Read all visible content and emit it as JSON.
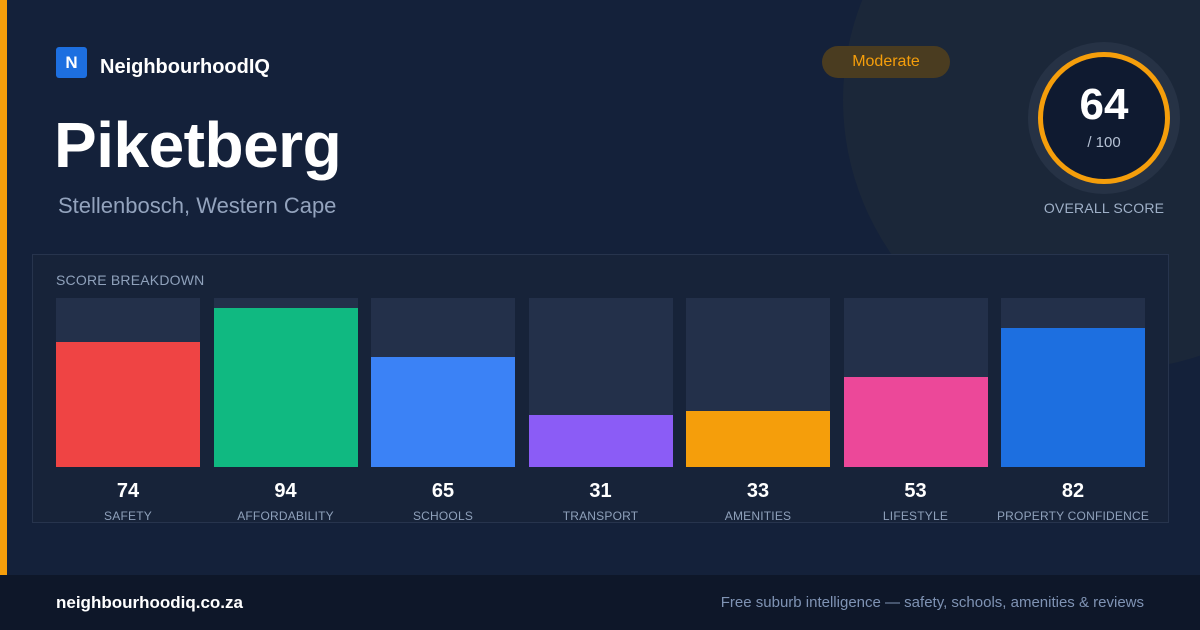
{
  "brand": {
    "logo_letter": "N",
    "name": "NeighbourhoodIQ"
  },
  "suburb": {
    "name": "Piketberg",
    "region": "Stellenbosch, Western Cape"
  },
  "rating_badge": "Moderate",
  "overall": {
    "score": "64",
    "max": "/ 100",
    "label": "OVERALL SCORE",
    "color": "#f59e0b"
  },
  "breakdown": {
    "title": "SCORE BREAKDOWN",
    "items": [
      {
        "label": "SAFETY",
        "value": "74",
        "color": "#ef4444"
      },
      {
        "label": "AFFORDABILITY",
        "value": "94",
        "color": "#10b981"
      },
      {
        "label": "SCHOOLS",
        "value": "65",
        "color": "#3b82f6"
      },
      {
        "label": "TRANSPORT",
        "value": "31",
        "color": "#8b5cf6"
      },
      {
        "label": "AMENITIES",
        "value": "33",
        "color": "#f59e0b"
      },
      {
        "label": "LIFESTYLE",
        "value": "53",
        "color": "#ec4899"
      },
      {
        "label": "PROPERTY CONFIDENCE",
        "value": "82",
        "color": "#1d6fe0"
      }
    ]
  },
  "footer": {
    "domain": "neighbourhoodiq.co.za",
    "tagline": "Free suburb intelligence — safety, schools, amenities & reviews"
  }
}
